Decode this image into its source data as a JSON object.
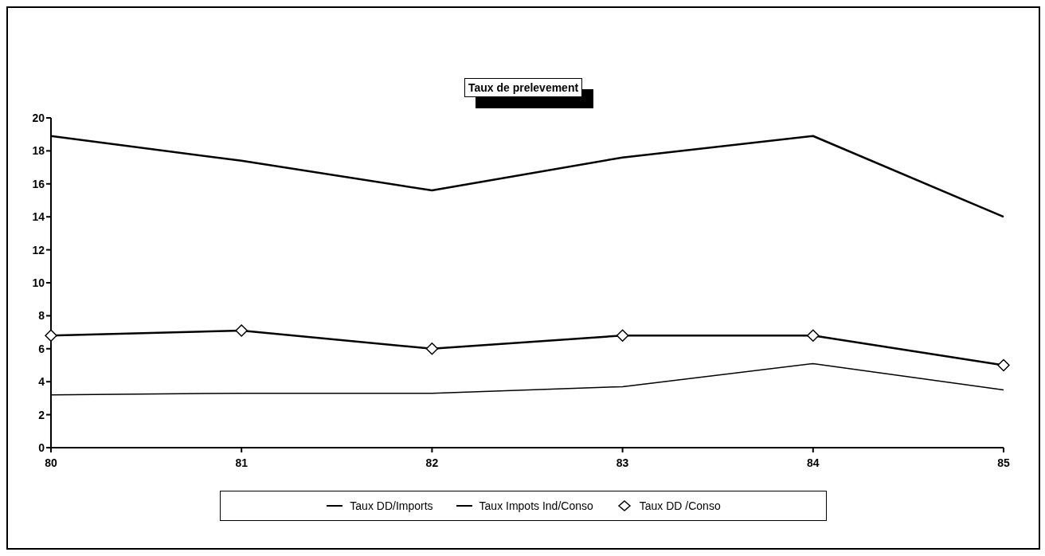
{
  "chart_data": {
    "type": "line",
    "title": "Taux de prelevement",
    "categories": [
      "80",
      "81",
      "82",
      "83",
      "84",
      "85"
    ],
    "series": [
      {
        "name": "Taux DD/Imports",
        "color": "#000000",
        "values": [
          18.9,
          17.4,
          15.6,
          17.6,
          18.9,
          14.0
        ],
        "marker": "none"
      },
      {
        "name": "Taux  Impots Ind/Conso",
        "color": "#000000",
        "values": [
          3.2,
          3.3,
          3.3,
          3.7,
          5.1,
          3.5
        ],
        "marker": "none"
      },
      {
        "name": "Taux DD /Conso",
        "color": "#000000",
        "values": [
          6.8,
          7.1,
          6.0,
          6.8,
          6.8,
          5.0
        ],
        "marker": "diamond"
      }
    ],
    "ylim": [
      0,
      20
    ],
    "yticks": [
      0,
      2,
      4,
      6,
      8,
      10,
      12,
      14,
      16,
      18,
      20
    ],
    "grid": false,
    "legend": "bottom",
    "line_style": "solid"
  }
}
